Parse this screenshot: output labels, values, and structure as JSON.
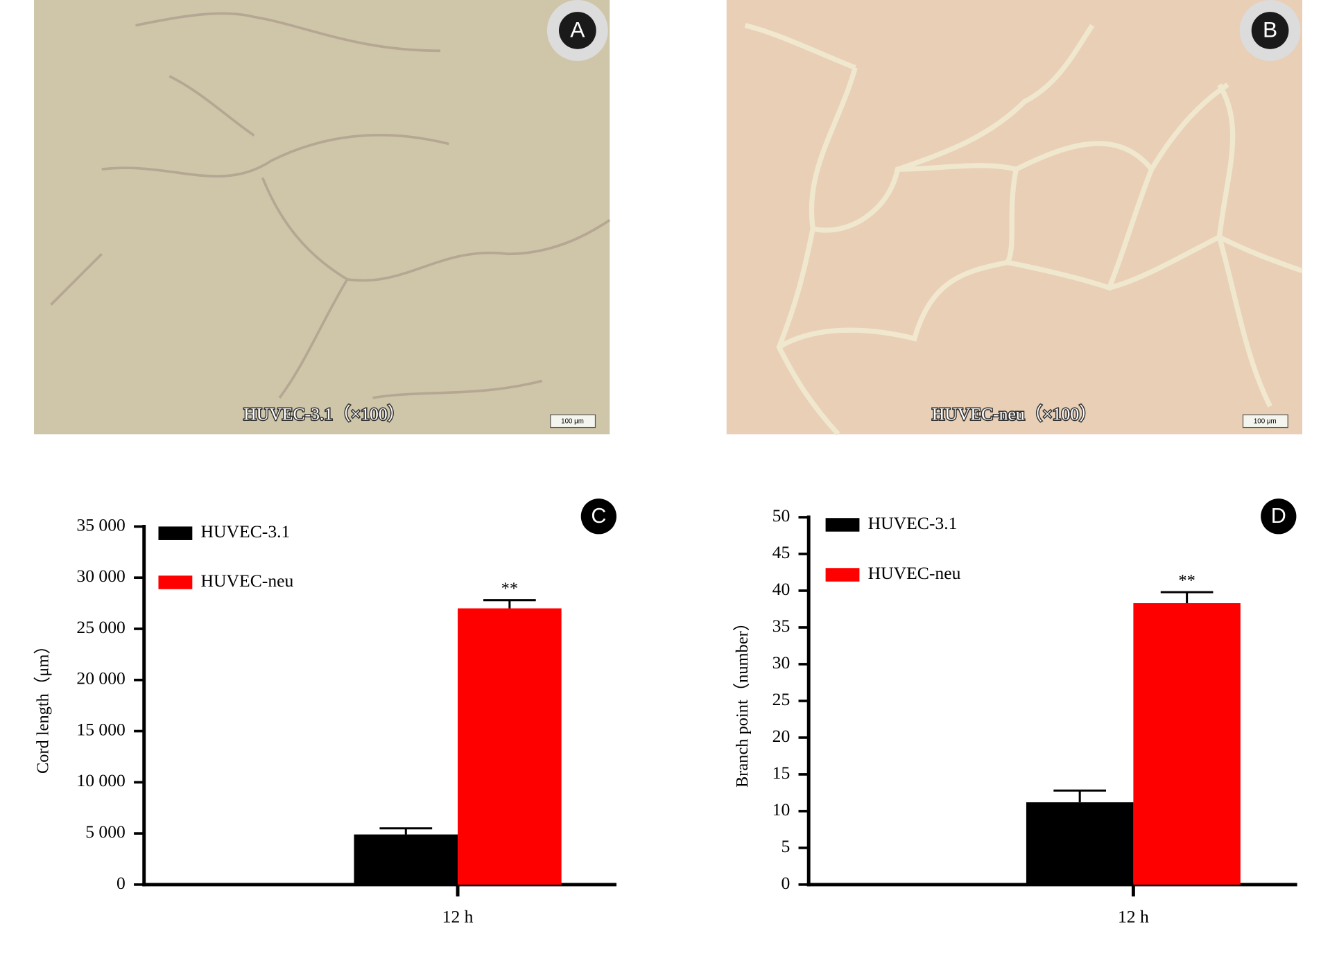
{
  "panels": [
    {
      "letter": "A",
      "caption": "HUVEC-3.1（×100）",
      "scale_bar": "100 μm"
    },
    {
      "letter": "B",
      "caption": "HUVEC-neu（×100）",
      "scale_bar": "100 μm"
    }
  ],
  "chart_data": [
    {
      "type": "bar",
      "panel_letter": "C",
      "y_label": "Cord length（μm）",
      "categories": [
        "12 h"
      ],
      "series": [
        {
          "name": "HUVEC-3.1",
          "color": "#000000",
          "values": [
            4900
          ],
          "errors": [
            600
          ]
        },
        {
          "name": "HUVEC-neu",
          "color": "#ff0000",
          "values": [
            27000
          ],
          "errors": [
            800
          ],
          "annotations": [
            "**"
          ]
        }
      ],
      "ylim": [
        0,
        35000
      ],
      "yticks": [
        0,
        {
          "value": 5000,
          "label": "5 000"
        },
        {
          "value": 10000,
          "label": "10 000"
        },
        {
          "value": 15000,
          "label": "15 000"
        },
        {
          "value": 20000,
          "label": "20 000"
        },
        {
          "value": 25000,
          "label": "25 000"
        },
        {
          "value": 30000,
          "label": "30 000"
        },
        {
          "value": 35000,
          "label": "35 000"
        }
      ]
    },
    {
      "type": "bar",
      "panel_letter": "D",
      "y_label": "Branch point（number）",
      "categories": [
        "12 h"
      ],
      "series": [
        {
          "name": "HUVEC-3.1",
          "color": "#000000",
          "values": [
            11.2
          ],
          "errors": [
            1.6
          ]
        },
        {
          "name": "HUVEC-neu",
          "color": "#ff0000",
          "values": [
            38.3
          ],
          "errors": [
            1.5
          ],
          "annotations": [
            "**"
          ]
        }
      ],
      "ylim": [
        0,
        50
      ],
      "yticks": [
        0,
        5,
        10,
        15,
        20,
        25,
        30,
        35,
        40,
        45,
        50
      ]
    }
  ]
}
